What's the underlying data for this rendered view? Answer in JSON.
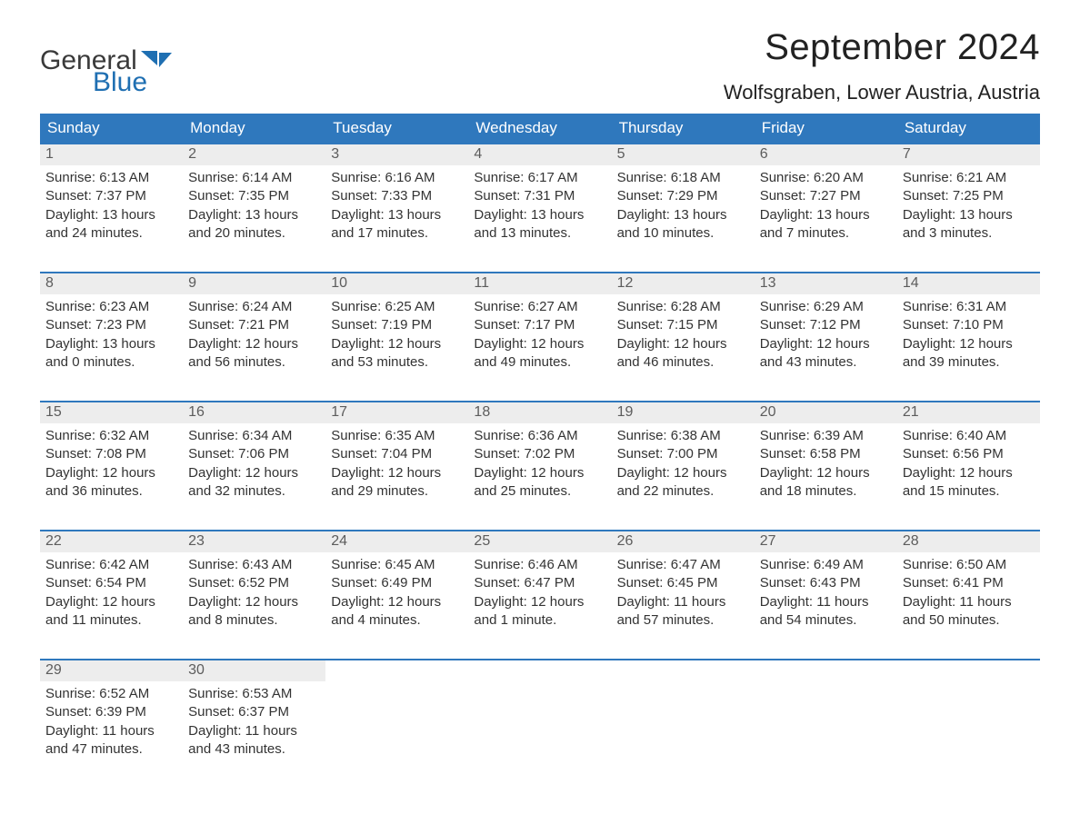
{
  "logo": {
    "text_top": "General",
    "text_bottom": "Blue",
    "accent_color": "#1f6fb2",
    "text_color": "#3a3a3a"
  },
  "title": "September 2024",
  "location": "Wolfsgraben, Lower Austria, Austria",
  "colors": {
    "header_bg": "#2f78bd",
    "header_text": "#ffffff",
    "daynum_bg": "#ededed",
    "daynum_text": "#5c5c5c",
    "body_text": "#333333",
    "week_border": "#2f78bd",
    "background": "#ffffff"
  },
  "typography": {
    "title_fontsize": 40,
    "location_fontsize": 22,
    "weekday_fontsize": 17,
    "daynum_fontsize": 16,
    "body_fontsize": 15
  },
  "weekdays": [
    "Sunday",
    "Monday",
    "Tuesday",
    "Wednesday",
    "Thursday",
    "Friday",
    "Saturday"
  ],
  "weeks": [
    [
      {
        "n": "1",
        "sunrise": "6:13 AM",
        "sunset": "7:37 PM",
        "daylight": "Daylight: 13 hours and 24 minutes."
      },
      {
        "n": "2",
        "sunrise": "6:14 AM",
        "sunset": "7:35 PM",
        "daylight": "Daylight: 13 hours and 20 minutes."
      },
      {
        "n": "3",
        "sunrise": "6:16 AM",
        "sunset": "7:33 PM",
        "daylight": "Daylight: 13 hours and 17 minutes."
      },
      {
        "n": "4",
        "sunrise": "6:17 AM",
        "sunset": "7:31 PM",
        "daylight": "Daylight: 13 hours and 13 minutes."
      },
      {
        "n": "5",
        "sunrise": "6:18 AM",
        "sunset": "7:29 PM",
        "daylight": "Daylight: 13 hours and 10 minutes."
      },
      {
        "n": "6",
        "sunrise": "6:20 AM",
        "sunset": "7:27 PM",
        "daylight": "Daylight: 13 hours and 7 minutes."
      },
      {
        "n": "7",
        "sunrise": "6:21 AM",
        "sunset": "7:25 PM",
        "daylight": "Daylight: 13 hours and 3 minutes."
      }
    ],
    [
      {
        "n": "8",
        "sunrise": "6:23 AM",
        "sunset": "7:23 PM",
        "daylight": "Daylight: 13 hours and 0 minutes."
      },
      {
        "n": "9",
        "sunrise": "6:24 AM",
        "sunset": "7:21 PM",
        "daylight": "Daylight: 12 hours and 56 minutes."
      },
      {
        "n": "10",
        "sunrise": "6:25 AM",
        "sunset": "7:19 PM",
        "daylight": "Daylight: 12 hours and 53 minutes."
      },
      {
        "n": "11",
        "sunrise": "6:27 AM",
        "sunset": "7:17 PM",
        "daylight": "Daylight: 12 hours and 49 minutes."
      },
      {
        "n": "12",
        "sunrise": "6:28 AM",
        "sunset": "7:15 PM",
        "daylight": "Daylight: 12 hours and 46 minutes."
      },
      {
        "n": "13",
        "sunrise": "6:29 AM",
        "sunset": "7:12 PM",
        "daylight": "Daylight: 12 hours and 43 minutes."
      },
      {
        "n": "14",
        "sunrise": "6:31 AM",
        "sunset": "7:10 PM",
        "daylight": "Daylight: 12 hours and 39 minutes."
      }
    ],
    [
      {
        "n": "15",
        "sunrise": "6:32 AM",
        "sunset": "7:08 PM",
        "daylight": "Daylight: 12 hours and 36 minutes."
      },
      {
        "n": "16",
        "sunrise": "6:34 AM",
        "sunset": "7:06 PM",
        "daylight": "Daylight: 12 hours and 32 minutes."
      },
      {
        "n": "17",
        "sunrise": "6:35 AM",
        "sunset": "7:04 PM",
        "daylight": "Daylight: 12 hours and 29 minutes."
      },
      {
        "n": "18",
        "sunrise": "6:36 AM",
        "sunset": "7:02 PM",
        "daylight": "Daylight: 12 hours and 25 minutes."
      },
      {
        "n": "19",
        "sunrise": "6:38 AM",
        "sunset": "7:00 PM",
        "daylight": "Daylight: 12 hours and 22 minutes."
      },
      {
        "n": "20",
        "sunrise": "6:39 AM",
        "sunset": "6:58 PM",
        "daylight": "Daylight: 12 hours and 18 minutes."
      },
      {
        "n": "21",
        "sunrise": "6:40 AM",
        "sunset": "6:56 PM",
        "daylight": "Daylight: 12 hours and 15 minutes."
      }
    ],
    [
      {
        "n": "22",
        "sunrise": "6:42 AM",
        "sunset": "6:54 PM",
        "daylight": "Daylight: 12 hours and 11 minutes."
      },
      {
        "n": "23",
        "sunrise": "6:43 AM",
        "sunset": "6:52 PM",
        "daylight": "Daylight: 12 hours and 8 minutes."
      },
      {
        "n": "24",
        "sunrise": "6:45 AM",
        "sunset": "6:49 PM",
        "daylight": "Daylight: 12 hours and 4 minutes."
      },
      {
        "n": "25",
        "sunrise": "6:46 AM",
        "sunset": "6:47 PM",
        "daylight": "Daylight: 12 hours and 1 minute."
      },
      {
        "n": "26",
        "sunrise": "6:47 AM",
        "sunset": "6:45 PM",
        "daylight": "Daylight: 11 hours and 57 minutes."
      },
      {
        "n": "27",
        "sunrise": "6:49 AM",
        "sunset": "6:43 PM",
        "daylight": "Daylight: 11 hours and 54 minutes."
      },
      {
        "n": "28",
        "sunrise": "6:50 AM",
        "sunset": "6:41 PM",
        "daylight": "Daylight: 11 hours and 50 minutes."
      }
    ],
    [
      {
        "n": "29",
        "sunrise": "6:52 AM",
        "sunset": "6:39 PM",
        "daylight": "Daylight: 11 hours and 47 minutes."
      },
      {
        "n": "30",
        "sunrise": "6:53 AM",
        "sunset": "6:37 PM",
        "daylight": "Daylight: 11 hours and 43 minutes."
      },
      null,
      null,
      null,
      null,
      null
    ]
  ],
  "labels": {
    "sunrise_prefix": "Sunrise: ",
    "sunset_prefix": "Sunset: "
  }
}
